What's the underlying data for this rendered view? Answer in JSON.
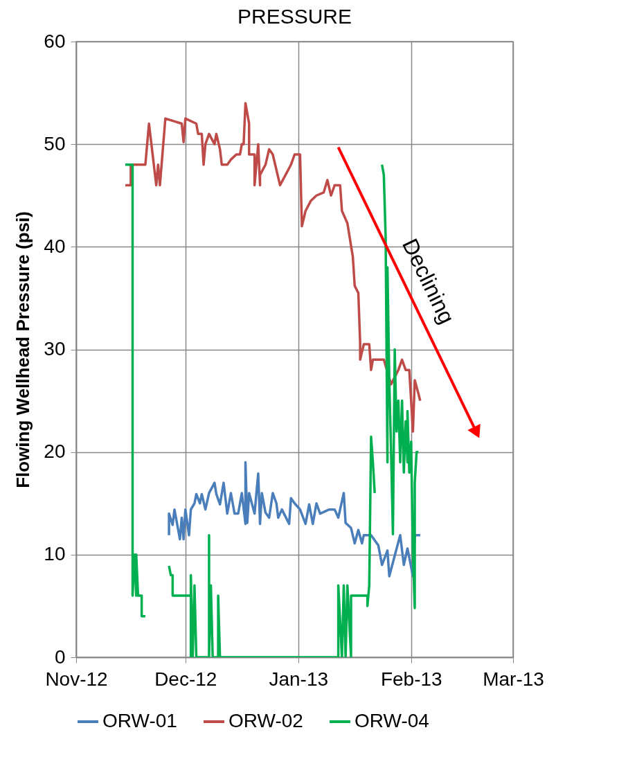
{
  "chart_data": {
    "type": "line",
    "title": "PRESSURE",
    "ylabel": "Flowing Wellhead Pressure (psi)",
    "xlim": [
      "2012-11-01",
      "2013-03-01"
    ],
    "xticks": [
      {
        "value": "2012-11-01",
        "label": "Nov-12"
      },
      {
        "value": "2012-12-01",
        "label": "Dec-12"
      },
      {
        "value": "2013-01-01",
        "label": "Jan-13"
      },
      {
        "value": "2013-02-01",
        "label": "Feb-13"
      },
      {
        "value": "2013-03-01",
        "label": "Mar-13"
      }
    ],
    "ylim": [
      0,
      60
    ],
    "yticks": [
      0,
      10,
      20,
      30,
      40,
      50,
      60
    ],
    "grid": true,
    "legend": "bottom",
    "line_style": "solid",
    "series": [
      {
        "name": "ORW-01",
        "color": "#4a7ebb",
        "x": [
          "2012-11-26T12:00",
          "2012-11-26T12:00",
          "2012-11-27T12:00",
          "2012-11-28",
          "2012-11-29T12:00",
          "2012-11-30",
          "2012-11-30T12:00",
          "2012-12-01",
          "2012-12-02",
          "2012-12-02T12:00",
          "2012-12-03T12:00",
          "2012-12-04",
          "2012-12-05",
          "2012-12-05T12:00",
          "2012-12-06T12:00",
          "2012-12-07T12:00",
          "2012-12-09",
          "2012-12-09T12:00",
          "2012-12-10T12:00",
          "2012-12-11T12:00",
          "2012-12-12T12:00",
          "2012-12-13T12:00",
          "2012-12-14T12:00",
          "2012-12-15T12:00",
          "2012-12-16T12:00",
          "2012-12-17T12:00",
          "2012-12-17T12:00",
          "2012-12-18",
          "2012-12-18T12:00",
          "2012-12-20",
          "2012-12-21",
          "2012-12-21T12:00",
          "2012-12-22",
          "2012-12-23",
          "2012-12-24",
          "2012-12-25",
          "2012-12-26",
          "2012-12-26T12:00",
          "2012-12-27T12:00",
          "2012-12-29T12:00",
          "2012-12-30",
          "2012-12-31",
          "2013-01-01T12:00",
          "2013-01-03",
          "2013-01-04",
          "2013-01-05",
          "2013-01-06",
          "2013-01-07",
          "2013-01-09T12:00",
          "2013-01-11",
          "2013-01-12",
          "2013-01-13T12:00",
          "2013-01-14",
          "2013-01-15T12:00",
          "2013-01-16T12:00",
          "2013-01-17T12:00",
          "2013-01-18T12:00",
          "2013-01-19",
          "2013-01-21",
          "2013-01-23",
          "2013-01-24",
          "2013-01-25T12:00",
          "2013-01-26",
          "2013-01-27T12:00",
          "2013-01-29",
          "2013-01-30",
          "2013-01-31",
          "2013-02-01T12:00",
          "2013-02-02",
          "2013-02-03T12:00"
        ],
        "values": [
          11.9,
          14,
          12.9,
          14.4,
          11.5,
          13.6,
          11.5,
          14.4,
          11.9,
          14.4,
          15,
          15.9,
          15,
          15.9,
          14.4,
          16,
          17,
          15.9,
          14.9,
          17,
          14,
          16,
          14,
          14,
          16,
          13,
          19,
          13.1,
          16,
          14,
          17.9,
          13,
          16,
          14.1,
          13.6,
          16,
          15,
          13.6,
          14.4,
          13,
          15.5,
          15,
          14.4,
          13,
          14.9,
          13,
          15,
          14,
          14.4,
          14.4,
          13.6,
          16,
          13.1,
          12.6,
          11.1,
          12.4,
          11.1,
          11.9,
          11.9,
          10.9,
          9,
          10.4,
          7.9,
          9.9,
          11.9,
          9,
          10.6,
          7.9,
          11.9,
          11.9
        ]
      },
      {
        "name": "ORW-02",
        "color": "#be4b48",
        "x": [
          "2012-11-14T12:00",
          "2012-11-16",
          "2012-11-16",
          "2012-11-20",
          "2012-11-21",
          "2012-11-21T12:00",
          "2012-11-23",
          "2012-11-23T12:00",
          "2012-11-24",
          "2012-11-25T12:00",
          "2012-11-30",
          "2012-11-30T12:00",
          "2012-12-01",
          "2012-12-04",
          "2012-12-04T12:00",
          "2012-12-05T12:00",
          "2012-12-06",
          "2012-12-06T12:00",
          "2012-12-07T12:00",
          "2012-12-09",
          "2012-12-09T12:00",
          "2012-12-10T12:00",
          "2012-12-11",
          "2012-12-12T12:00",
          "2012-12-13T12:00",
          "2012-12-15",
          "2012-12-16",
          "2012-12-16T12:00",
          "2012-12-17",
          "2012-12-17T12:00",
          "2012-12-18T12:00",
          "2012-12-18T12:00",
          "2012-12-20",
          "2012-12-20",
          "2012-12-21",
          "2012-12-21T12:00",
          "2012-12-21T12:00",
          "2012-12-23",
          "2012-12-24",
          "2012-12-25",
          "2012-12-27",
          "2012-12-28T12:00",
          "2012-12-30",
          "2012-12-31",
          "2013-01-01T12:00",
          "2013-01-02",
          "2013-01-03",
          "2013-01-04T12:00",
          "2013-01-06",
          "2013-01-08",
          "2013-01-09",
          "2013-01-10",
          "2013-01-11",
          "2013-01-12T12:00",
          "2013-01-13",
          "2013-01-14T12:00",
          "2013-01-16",
          "2013-01-16T12:00",
          "2013-01-17T12:00",
          "2013-01-18",
          "2013-01-18",
          "2013-01-19",
          "2013-01-20T12:00",
          "2013-01-21",
          "2013-01-21T12:00",
          "2013-01-24T12:00",
          "2013-01-26T12:00",
          "2013-01-28T12:00",
          "2013-01-29T12:00",
          "2013-01-30T12:00",
          "2013-01-31T12:00",
          "2013-02-01T12:00",
          "2013-02-02",
          "2013-02-03",
          "2013-02-03T12:00"
        ],
        "values": [
          46,
          46,
          48,
          48,
          52,
          50.5,
          46,
          48,
          46,
          52.5,
          52,
          50.2,
          52.5,
          52,
          51,
          51,
          48,
          50,
          51,
          50,
          51,
          49.5,
          48,
          48,
          48.5,
          49,
          49,
          50,
          50,
          54,
          52,
          49,
          49,
          46,
          50,
          46,
          47,
          48,
          49.5,
          49,
          46,
          47,
          48,
          49,
          49,
          42,
          43.5,
          44.5,
          45,
          45.3,
          46.5,
          45,
          46,
          46,
          43.5,
          42.3,
          39,
          36.2,
          35.5,
          30.6,
          29,
          30.5,
          30.5,
          28,
          29,
          29,
          26.6,
          28,
          29,
          28,
          28,
          22,
          27,
          25.7,
          25
        ]
      },
      {
        "name": "ORW-04",
        "color": "#00b050",
        "x": [
          "2012-11-14T12:00",
          "2012-11-16T12:00",
          "2012-11-16T12:00",
          "2012-11-17",
          "2012-11-17T12:00",
          "2012-11-17T12:00",
          "2012-11-18",
          "2012-11-19",
          "2012-11-19",
          "2012-11-20",
          "2012-11-23",
          "2012-11-26T12:00",
          "2012-11-27",
          "2012-11-27T12:00",
          "2012-11-27T12:00",
          "2012-12-02T12:00",
          "2012-12-02T12:00",
          "2012-12-02T12:00",
          "2012-12-03",
          "2012-12-03T12:00",
          "2012-12-04",
          "2012-12-07T12:00",
          "2012-12-07T12:00",
          "2012-12-07T12:00",
          "2012-12-08",
          "2012-12-08T12:00",
          "2012-12-10",
          "2012-12-10",
          "2012-12-10T12:00",
          "2013-01-12",
          "2013-01-12",
          "2013-01-13",
          "2013-01-13T12:00",
          "2013-01-14",
          "2013-01-14T12:00",
          "2013-01-15T12:00",
          "2013-01-15T12:00",
          "2013-01-20",
          "2013-01-20",
          "2013-01-20T12:00",
          "2013-01-21",
          "2013-01-21T12:00",
          "2013-01-22",
          "2013-01-23",
          "2013-01-24",
          "2013-01-24T12:00",
          "2013-01-25",
          "2013-01-25T12:00",
          "2013-01-25T12:00",
          "2013-01-26",
          "2013-01-26T12:00",
          "2013-01-27",
          "2013-01-27T12:00",
          "2013-01-28",
          "2013-01-28T12:00",
          "2013-01-29",
          "2013-01-29T12:00",
          "2013-01-30",
          "2013-01-30T12:00",
          "2013-01-31",
          "2013-01-31",
          "2013-01-31T12:00",
          "2013-02-01",
          "2013-02-01T12:00",
          "2013-02-02",
          "2013-02-02",
          "2013-02-02T12:00",
          "2013-02-03"
        ],
        "values": [
          48,
          48,
          6,
          10,
          6,
          10,
          6,
          6,
          4,
          4,
          null,
          8.9,
          8,
          8,
          6,
          6,
          0,
          8,
          0,
          7,
          0,
          0,
          11.9,
          0,
          7,
          0,
          0,
          6,
          0,
          0,
          7,
          0,
          7,
          0,
          7,
          0,
          6,
          6,
          5,
          7,
          21.5,
          19,
          16,
          null,
          48,
          47,
          41,
          19,
          38,
          27,
          20,
          12,
          30,
          22,
          25,
          19,
          25,
          18,
          23,
          19,
          24,
          18,
          21,
          10,
          4.8,
          17,
          20,
          20
        ]
      },
      {
        "color": "#ff0000",
        "type": "line",
        "x": [
          "2013-01-12",
          "2013-02-19"
        ],
        "values": [
          49.7,
          21.9
        ]
      }
    ],
    "annotations": [
      "Declining"
    ]
  }
}
